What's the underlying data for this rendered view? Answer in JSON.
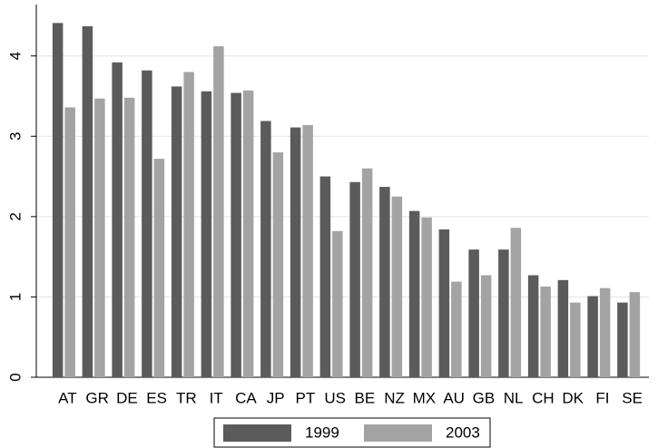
{
  "chart_data": {
    "type": "bar",
    "categories": [
      "AT",
      "GR",
      "DE",
      "ES",
      "TR",
      "IT",
      "CA",
      "JP",
      "PT",
      "US",
      "BE",
      "NZ",
      "MX",
      "AU",
      "GB",
      "NL",
      "CH",
      "DK",
      "FI",
      "SE"
    ],
    "series": [
      {
        "name": "1999",
        "color": "#5b5b5b",
        "values": [
          4.41,
          4.37,
          3.92,
          3.82,
          3.62,
          3.56,
          3.54,
          3.19,
          3.11,
          2.5,
          2.43,
          2.37,
          2.07,
          1.84,
          1.59,
          1.59,
          1.27,
          1.21,
          1.01,
          0.93
        ]
      },
      {
        "name": "2003",
        "color": "#a3a3a3",
        "values": [
          3.36,
          3.47,
          3.48,
          2.72,
          3.8,
          4.12,
          3.57,
          2.8,
          3.14,
          1.82,
          2.6,
          2.25,
          1.99,
          1.19,
          1.27,
          1.86,
          1.13,
          0.93,
          1.11,
          1.06
        ]
      }
    ],
    "ylim": [
      0,
      4.64
    ],
    "yticks": [
      0,
      1,
      2,
      3,
      4
    ],
    "grid": true,
    "legend": "bottom"
  }
}
